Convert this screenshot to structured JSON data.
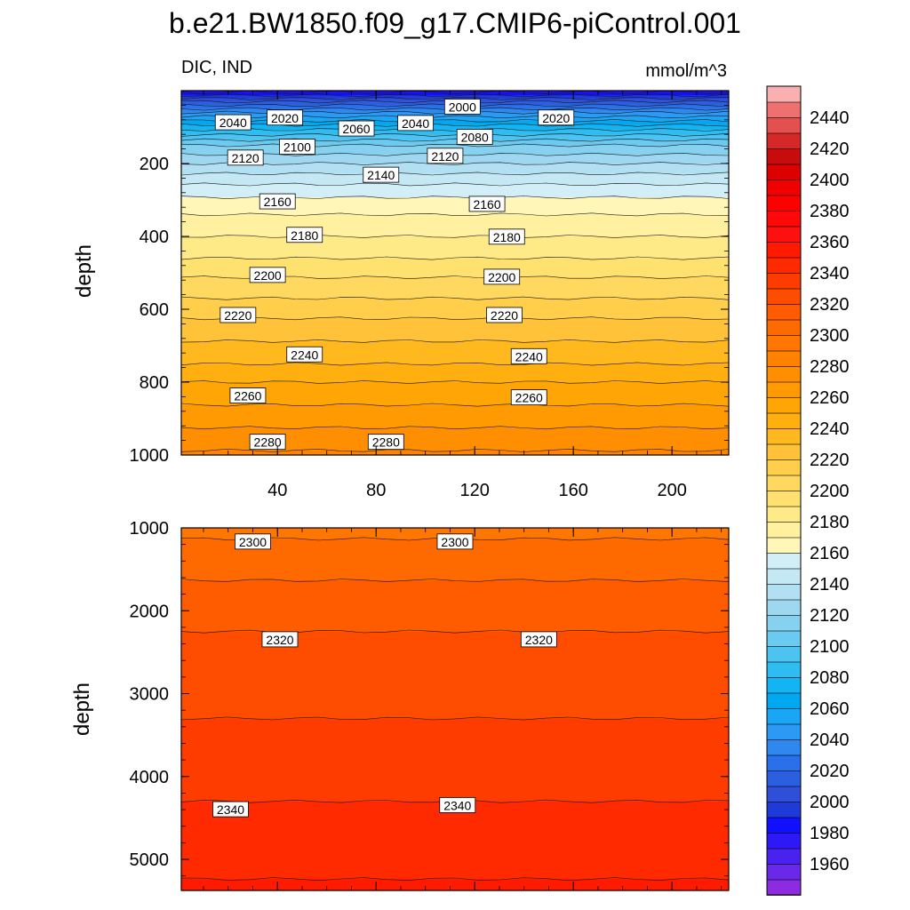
{
  "title": "b.e21.BW1850.f09_g17.CMIP6-piControl.001",
  "chart_data": [
    {
      "type": "contour",
      "panel": "upper",
      "left_label": "DIC, IND",
      "right_label": "mmol/m^3",
      "ylabel": "depth",
      "xlabel": "",
      "xlim": [
        1,
        223
      ],
      "ylim": [
        0,
        1000
      ],
      "y_reversed": true,
      "xticks": [
        40,
        80,
        120,
        160,
        200
      ],
      "yticks": [
        200,
        400,
        600,
        800,
        1000
      ],
      "depth_value_profile": [
        [
          0,
          1975
        ],
        [
          30,
          2010
        ],
        [
          60,
          2040
        ],
        [
          100,
          2075
        ],
        [
          150,
          2110
        ],
        [
          200,
          2130
        ],
        [
          250,
          2148
        ],
        [
          300,
          2162
        ],
        [
          350,
          2172
        ],
        [
          400,
          2180
        ],
        [
          450,
          2188
        ],
        [
          500,
          2198
        ],
        [
          550,
          2206
        ],
        [
          600,
          2216
        ],
        [
          650,
          2224
        ],
        [
          700,
          2232
        ],
        [
          750,
          2240
        ],
        [
          800,
          2250
        ],
        [
          850,
          2258
        ],
        [
          900,
          2266
        ],
        [
          950,
          2274
        ],
        [
          1000,
          2282
        ]
      ],
      "contour_labels": [
        {
          "text": "2000",
          "x": 115,
          "y": 45
        },
        {
          "text": "2040",
          "x": 22,
          "y": 88
        },
        {
          "text": "2020",
          "x": 43,
          "y": 75
        },
        {
          "text": "2060",
          "x": 72,
          "y": 105
        },
        {
          "text": "2040",
          "x": 96,
          "y": 90
        },
        {
          "text": "2020",
          "x": 153,
          "y": 75
        },
        {
          "text": "2080",
          "x": 120,
          "y": 128
        },
        {
          "text": "2100",
          "x": 48,
          "y": 155
        },
        {
          "text": "2120",
          "x": 27,
          "y": 185
        },
        {
          "text": "2120",
          "x": 108,
          "y": 180
        },
        {
          "text": "2140",
          "x": 82,
          "y": 232
        },
        {
          "text": "2160",
          "x": 40,
          "y": 305
        },
        {
          "text": "2160",
          "x": 125,
          "y": 312
        },
        {
          "text": "2180",
          "x": 51,
          "y": 397
        },
        {
          "text": "2180",
          "x": 133,
          "y": 402
        },
        {
          "text": "2200",
          "x": 36,
          "y": 507
        },
        {
          "text": "2200",
          "x": 131,
          "y": 512
        },
        {
          "text": "2220",
          "x": 24,
          "y": 617
        },
        {
          "text": "2220",
          "x": 132,
          "y": 617
        },
        {
          "text": "2240",
          "x": 51,
          "y": 725
        },
        {
          "text": "2240",
          "x": 142,
          "y": 730
        },
        {
          "text": "2260",
          "x": 28,
          "y": 838
        },
        {
          "text": "2260",
          "x": 142,
          "y": 843
        },
        {
          "text": "2280",
          "x": 36,
          "y": 965
        },
        {
          "text": "2280",
          "x": 84,
          "y": 965
        }
      ]
    },
    {
      "type": "contour",
      "panel": "lower",
      "ylabel": "depth",
      "xlim": [
        1,
        223
      ],
      "ylim": [
        1000,
        5375
      ],
      "y_reversed": true,
      "xticks": [
        40,
        80,
        120,
        160,
        200
      ],
      "yticks": [
        1000,
        2000,
        3000,
        4000,
        5000
      ],
      "depth_value_profile": [
        [
          1000,
          2296
        ],
        [
          1200,
          2302
        ],
        [
          1450,
          2307
        ],
        [
          2000,
          2316
        ],
        [
          2250,
          2320
        ],
        [
          3300,
          2330
        ],
        [
          4300,
          2340
        ],
        [
          5100,
          2348
        ],
        [
          5375,
          2352
        ]
      ],
      "contour_labels": [
        {
          "text": "2300",
          "x": 30,
          "y": 1170
        },
        {
          "text": "2300",
          "x": 112,
          "y": 1170
        },
        {
          "text": "2320",
          "x": 41,
          "y": 2350
        },
        {
          "text": "2320",
          "x": 146,
          "y": 2350
        },
        {
          "text": "2340",
          "x": 21,
          "y": 4400
        },
        {
          "text": "2340",
          "x": 113,
          "y": 4350
        }
      ]
    }
  ],
  "colorbar": {
    "min": 1940,
    "max": 2460,
    "step": 10,
    "labels": [
      "2440",
      "2420",
      "2400",
      "2380",
      "2360",
      "2340",
      "2320",
      "2300",
      "2280",
      "2260",
      "2240",
      "2220",
      "2200",
      "2180",
      "2160",
      "2140",
      "2120",
      "2100",
      "2080",
      "2060",
      "2040",
      "2020",
      "2000",
      "1980",
      "1960"
    ],
    "colors": [
      "#8c2be0",
      "#6a28e8",
      "#4a22f0",
      "#2f18f8",
      "#1010ff",
      "#1e3ad8",
      "#2f4fd8",
      "#2a5fe0",
      "#2a70ea",
      "#2f88f0",
      "#2c9af4",
      "#1aa6f5",
      "#00a8f2",
      "#12b4f2",
      "#2fbcf0",
      "#4cc3f0",
      "#6ccaf0",
      "#86d0f0",
      "#9ed8f0",
      "#b2e0f2",
      "#c4e8f4",
      "#d2eef6",
      "#fff6b8",
      "#fff1a0",
      "#ffea88",
      "#ffe170",
      "#ffd860",
      "#ffce4a",
      "#ffc238",
      "#ffb81e",
      "#ffb010",
      "#ffa606",
      "#ff9a02",
      "#ff8f00",
      "#ff8300",
      "#ff7700",
      "#ff6a00",
      "#ff5c00",
      "#ff4d00",
      "#ff3c00",
      "#ff2a00",
      "#ff1a00",
      "#ff1010",
      "#ff0808",
      "#ff0000",
      "#f00000",
      "#dd0000",
      "#c80c0c",
      "#d62828",
      "#e45050",
      "#ee7070",
      "#f8b0b0"
    ]
  }
}
